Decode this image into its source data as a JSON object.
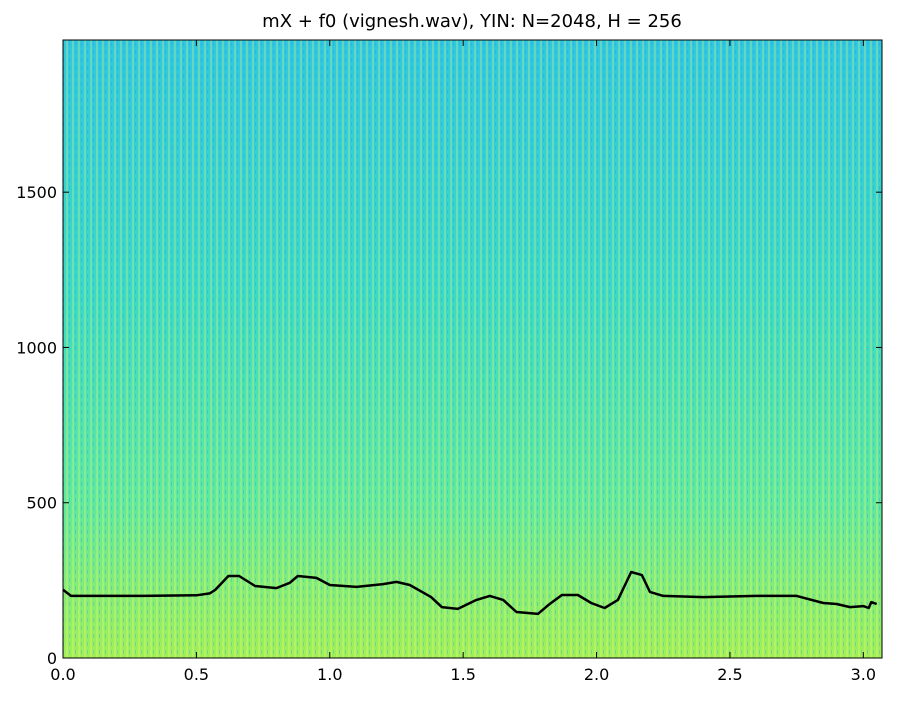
{
  "chart_data": {
    "type": "line",
    "title": "mX + f0 (vignesh.wav), YIN: N=2048, H = 256",
    "x": [
      0.0,
      0.03,
      0.1,
      0.3,
      0.5,
      0.55,
      0.57,
      0.62,
      0.66,
      0.72,
      0.8,
      0.85,
      0.88,
      0.95,
      1.0,
      1.1,
      1.2,
      1.25,
      1.3,
      1.38,
      1.42,
      1.48,
      1.55,
      1.6,
      1.65,
      1.7,
      1.78,
      1.82,
      1.87,
      1.93,
      1.98,
      2.03,
      2.08,
      2.13,
      2.17,
      2.2,
      2.25,
      2.4,
      2.6,
      2.75,
      2.85,
      2.9,
      2.95,
      3.0,
      3.02,
      3.03,
      3.05
    ],
    "series": [
      {
        "name": "f0",
        "color": "#000000",
        "values": [
          220,
          200,
          200,
          200,
          202,
          208,
          219,
          264,
          264,
          232,
          225,
          242,
          264,
          258,
          235,
          229,
          238,
          245,
          235,
          196,
          164,
          158,
          187,
          200,
          187,
          148,
          142,
          171,
          203,
          203,
          177,
          161,
          187,
          277,
          267,
          213,
          200,
          196,
          200,
          200,
          177,
          174,
          164,
          167,
          161,
          180,
          174
        ]
      }
    ],
    "xlim": [
      0,
      3.07
    ],
    "ylim": [
      0,
      1990
    ],
    "xticks": [
      {
        "value": 0,
        "label": "0.0"
      },
      0.5,
      {
        "value": 1,
        "label": "1.0"
      },
      1.5,
      {
        "value": 2,
        "label": "2.0"
      },
      2.5,
      {
        "value": 3,
        "label": "3.0"
      }
    ],
    "yticks": [
      0,
      500,
      1000,
      1500
    ]
  }
}
